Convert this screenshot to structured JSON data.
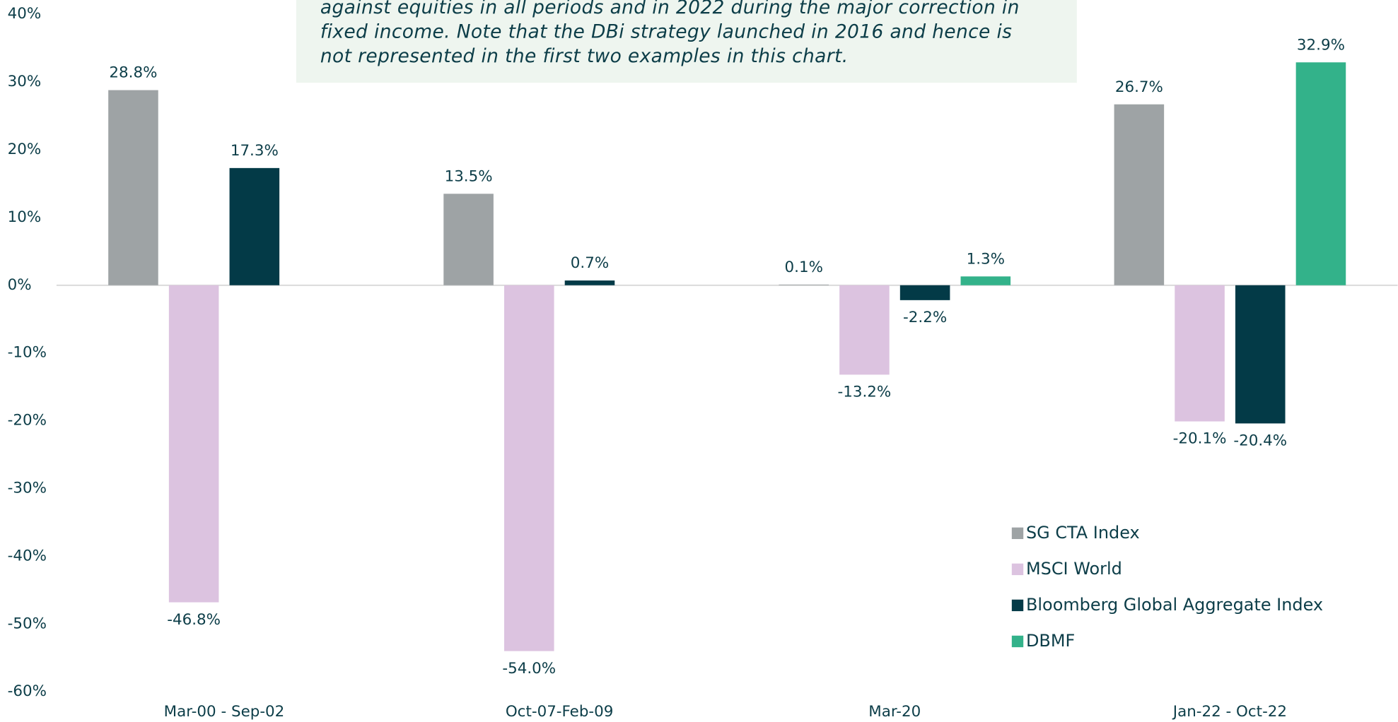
{
  "chart_data": {
    "type": "bar",
    "annotation": [
      "against equities in all periods and in 2022 during the major correction in",
      "fixed income. Note that the DBi strategy launched in 2016 and hence is",
      "not represented in the first two examples in this chart."
    ],
    "categories": [
      "Mar-00 - Sep-02",
      "Oct-07-Feb-09",
      "Mar-20",
      "Jan-22 - Oct-22"
    ],
    "series": [
      {
        "name": "SG CTA Index",
        "color": "#9ea3a5",
        "values": [
          28.8,
          13.5,
          0.1,
          26.7
        ],
        "value_labels": [
          "28.8%",
          "13.5%",
          "0.1%",
          "26.7%"
        ]
      },
      {
        "name": "MSCI World",
        "color": "#dcc3e0",
        "values": [
          -46.8,
          -54.0,
          -13.2,
          -20.1
        ],
        "value_labels": [
          "-46.8%",
          "-54.0%",
          "-13.2%",
          "-20.1%"
        ]
      },
      {
        "name": "Bloomberg Global Aggregate Index",
        "color": "#033a47",
        "values": [
          17.3,
          0.7,
          -2.2,
          -20.4
        ],
        "value_labels": [
          "17.3%",
          "0.7%",
          "-2.2%",
          "-20.4%"
        ]
      },
      {
        "name": "DBMF",
        "color": "#33b28a",
        "values": [
          null,
          null,
          1.3,
          32.9
        ],
        "value_labels": [
          null,
          null,
          "1.3%",
          "32.9%"
        ]
      }
    ],
    "ylim": [
      -60,
      40
    ],
    "yticks": [
      {
        "value": -60,
        "label": "-60%"
      },
      {
        "value": -50,
        "label": "-50%"
      },
      {
        "value": -40,
        "label": "-40%"
      },
      {
        "value": -30,
        "label": "-30%"
      },
      {
        "value": -20,
        "label": "-20%"
      },
      {
        "value": -10,
        "label": "-10%"
      },
      {
        "value": 0,
        "label": "0%"
      },
      {
        "value": 10,
        "label": "10%"
      },
      {
        "value": 20,
        "label": "20%"
      },
      {
        "value": 30,
        "label": "30%"
      },
      {
        "value": 40,
        "label": "40%"
      }
    ],
    "legend": "bottom-right"
  }
}
